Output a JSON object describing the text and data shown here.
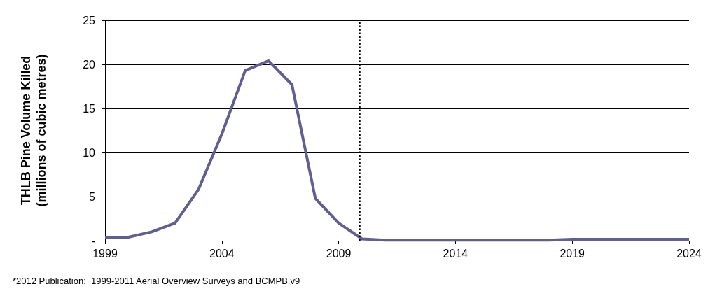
{
  "chart_data": {
    "type": "line",
    "ylabel": "THLB Pine Volume Killed\n(millions of cubic metres)",
    "annotations": [
      "*2012 Publication:  1999-2011 Aerial Overview Surveys and BCMPB.v9"
    ],
    "x": [
      1999,
      2000,
      2001,
      2002,
      2003,
      2004,
      2005,
      2006,
      2007,
      2008,
      2009,
      2010,
      2011,
      2012,
      2013,
      2014,
      2015,
      2016,
      2017,
      2018,
      2019,
      2020,
      2021,
      2022,
      2023,
      2024
    ],
    "series": [
      {
        "color": "#5f5f96",
        "values": [
          0.4,
          0.4,
          1.0,
          2.0,
          5.8,
          12.1,
          19.3,
          20.4,
          17.7,
          4.8,
          2.0,
          0.2,
          0.05,
          0.05,
          0.05,
          0.05,
          0.05,
          0.05,
          0.05,
          0.05,
          0.15,
          0.15,
          0.15,
          0.15,
          0.15,
          0.15
        ]
      }
    ],
    "xlim": [
      1999,
      2024
    ],
    "xticks": [
      1999,
      2004,
      2009,
      2014,
      2019,
      2024
    ],
    "ylim": [
      0,
      25
    ],
    "yticks": [
      {
        "value": 0,
        "label": "-"
      },
      5,
      10,
      15,
      20,
      25
    ],
    "grid": "y",
    "marker": "none",
    "line_style": "solid",
    "ref_lines": [
      {
        "axis": "x",
        "value": 2009.9,
        "line_style": "dotted",
        "color": "#000000"
      }
    ]
  }
}
